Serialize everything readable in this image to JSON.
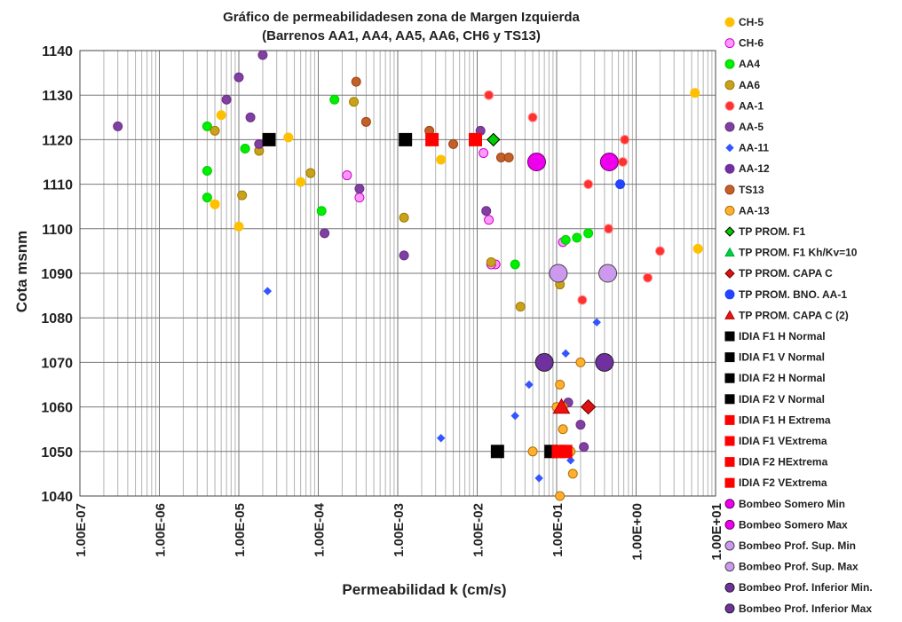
{
  "chart_data": {
    "type": "scatter",
    "title": [
      "Gráfico de permeabilidadesen zona de Margen Izquierda",
      "(Barrenos AA1, AA4,  AA5, AA6,  CH6 y TS13)"
    ],
    "xlabel": "Permeabilidad k (cm/s)",
    "ylabel": "Cota msnm",
    "x_scale": "log",
    "xlim": [
      1e-07,
      10
    ],
    "ylim": [
      1040,
      1140
    ],
    "x_ticks": [
      "1.00E-07",
      "1.00E-06",
      "1.00E-05",
      "1.00E-04",
      "1.00E-03",
      "1.00E-02",
      "1.00E-01",
      "1.00E+00",
      "1.00E+01"
    ],
    "y_ticks": [
      1040,
      1050,
      1060,
      1070,
      1080,
      1090,
      1100,
      1110,
      1120,
      1130,
      1140
    ],
    "grid": true,
    "legend_position": "right",
    "series": [
      {
        "name": "CH-5",
        "marker": "circle",
        "color": "#FFC000",
        "edge": "#FFC000",
        "size": 5,
        "x": [
          6e-06,
          5e-06,
          4.2e-05,
          1e-05,
          6e-05,
          0.0035,
          5e-06,
          6.0,
          5.5
        ],
        "y": [
          1125.5,
          1105.5,
          1120.5,
          1100.5,
          1110.5,
          1115.5,
          1105.5,
          1095.5,
          1130.5
        ]
      },
      {
        "name": "CH-6",
        "marker": "circle",
        "color": "#FF99FF",
        "edge": "#CC00CC",
        "size": 5,
        "x": [
          0.00023,
          0.00033,
          0.012,
          0.014,
          0.017,
          0.015,
          0.12
        ],
        "y": [
          1112,
          1107,
          1117,
          1102,
          1092,
          1092,
          1097
        ]
      },
      {
        "name": "AA4",
        "marker": "circle",
        "color": "#00EE00",
        "edge": "#00CC00",
        "size": 5,
        "x": [
          4e-06,
          4e-06,
          4e-06,
          1.2e-05,
          0.00011,
          0.00016,
          0.03,
          0.13,
          0.18,
          0.25
        ],
        "y": [
          1123,
          1113,
          1107,
          1118,
          1104,
          1129,
          1092,
          1097.5,
          1098,
          1099
        ]
      },
      {
        "name": "AA6",
        "marker": "circle",
        "color": "#C9A21B",
        "edge": "#A07C00",
        "size": 5,
        "x": [
          5e-06,
          8e-05,
          1.1e-05,
          1.8e-05,
          0.00028,
          0.0012,
          0.015,
          0.035,
          0.11
        ],
        "y": [
          1122,
          1112.5,
          1107.5,
          1117.5,
          1128.5,
          1102.5,
          1092.5,
          1082.5,
          1087.5
        ]
      },
      {
        "name": "AA-1",
        "marker": "circle",
        "color": "#FF3030",
        "edge": "#FF9999",
        "size": 5,
        "x": [
          0.014,
          0.05,
          0.25,
          0.68,
          0.72,
          0.45,
          2.0,
          1.4,
          0.21
        ],
        "y": [
          1130,
          1125,
          1110,
          1115,
          1120,
          1100,
          1095,
          1089,
          1084
        ]
      },
      {
        "name": "AA-5",
        "marker": "circle",
        "color": "#8040A0",
        "edge": "#6A2C8A",
        "size": 5,
        "x": [
          3e-07,
          7e-06,
          1e-05,
          1.4e-05,
          1.8e-05,
          2e-05,
          0.00012,
          0.00033,
          0.0012,
          0.011,
          0.013,
          0.14,
          0.2,
          0.22
        ],
        "y": [
          1123,
          1129,
          1134,
          1125,
          1119,
          1139,
          1099,
          1109,
          1094,
          1122,
          1104,
          1061,
          1056,
          1051
        ]
      },
      {
        "name": "AA-11",
        "marker": "diamond",
        "color": "#3355FF",
        "edge": "#3355FF",
        "size": 4,
        "x": [
          2.3e-05,
          0.0035,
          0.03,
          0.045,
          0.06,
          0.13,
          0.15,
          0.32
        ],
        "y": [
          1086,
          1053,
          1058,
          1065,
          1044,
          1072,
          1048,
          1079
        ]
      },
      {
        "name": "AA-12",
        "marker": "circle",
        "color": "#7030A0",
        "edge": "#7030A0",
        "size": 5,
        "x": [],
        "y": []
      },
      {
        "name": "TS13",
        "marker": "circle",
        "color": "#C0602A",
        "edge": "#A04010",
        "size": 5,
        "x": [
          0.0003,
          0.0004,
          0.0025,
          0.005,
          0.02,
          0.025
        ],
        "y": [
          1133,
          1124,
          1122,
          1119,
          1116,
          1116
        ]
      },
      {
        "name": "AA-13",
        "marker": "circle",
        "color": "#FFB030",
        "edge": "#B07000",
        "size": 5,
        "x": [
          0.05,
          0.11,
          0.1,
          0.11,
          0.12,
          0.16,
          0.2,
          0.15,
          0.12
        ],
        "y": [
          1050,
          1040,
          1060,
          1065,
          1055,
          1045,
          1070,
          1050,
          1060
        ]
      },
      {
        "name": "TP PROM. F1",
        "marker": "diamond",
        "color": "#00CC00",
        "edge": "#000000",
        "size": 7,
        "x": [
          0.016
        ],
        "y": [
          1120
        ]
      },
      {
        "name": "TP PROM. F1 Kh/Kv=10",
        "marker": "triangle",
        "color": "#00CC44",
        "edge": "#00AA33",
        "size": 7,
        "x": [],
        "y": []
      },
      {
        "name": "TP PROM. CAPA C",
        "marker": "diamond",
        "color": "#DD1111",
        "edge": "#660000",
        "size": 8,
        "x": [
          0.25
        ],
        "y": [
          1060
        ]
      },
      {
        "name": "TP PROM. BNO. AA-1",
        "marker": "circle",
        "color": "#2244FF",
        "edge": "#2244FF",
        "size": 5,
        "x": [
          0.63
        ],
        "y": [
          1110
        ]
      },
      {
        "name": "TP PROM. CAPA C (2)",
        "marker": "triangle",
        "color": "#EE1111",
        "edge": "#AA0000",
        "size": 9,
        "x": [
          0.115
        ],
        "y": [
          1060
        ]
      },
      {
        "name": "IDIA F1 H Normal",
        "marker": "square",
        "color": "#000000",
        "edge": "#000000",
        "size": 7,
        "x": [
          2.4e-05
        ],
        "y": [
          1120
        ]
      },
      {
        "name": "IDIA F1 V Normal",
        "marker": "square",
        "color": "#000000",
        "edge": "#000000",
        "size": 7,
        "x": [
          0.00125
        ],
        "y": [
          1120
        ]
      },
      {
        "name": "IDIA F2  H Normal",
        "marker": "square",
        "color": "#000000",
        "edge": "#000000",
        "size": 7,
        "x": [
          0.018
        ],
        "y": [
          1050
        ]
      },
      {
        "name": "IDIA F2 V Normal",
        "marker": "square",
        "color": "#000000",
        "edge": "#000000",
        "size": 7,
        "x": [
          0.085
        ],
        "y": [
          1050
        ]
      },
      {
        "name": "IDIA F1 H Extrema",
        "marker": "square",
        "color": "#FF0000",
        "edge": "#FF0000",
        "size": 7,
        "x": [
          0.0027
        ],
        "y": [
          1120
        ]
      },
      {
        "name": "IDIA F1 VExtrema",
        "marker": "square",
        "color": "#FF0000",
        "edge": "#FF0000",
        "size": 7,
        "x": [
          0.0095
        ],
        "y": [
          1120
        ]
      },
      {
        "name": "IDIA F2 HExtrema",
        "marker": "square",
        "color": "#FF0000",
        "edge": "#FF0000",
        "size": 7,
        "x": [
          0.105
        ],
        "y": [
          1050
        ]
      },
      {
        "name": "IDIA F2 VExtrema",
        "marker": "square",
        "color": "#FF0000",
        "edge": "#FF0000",
        "size": 7,
        "x": [
          0.13
        ],
        "y": [
          1050
        ]
      },
      {
        "name": "Bombeo Somero Min",
        "marker": "circle",
        "color": "#EE00EE",
        "edge": "#660066",
        "size": 10,
        "x": [
          0.056
        ],
        "y": [
          1115
        ]
      },
      {
        "name": "Bombeo Somero Max",
        "marker": "circle",
        "color": "#EE00EE",
        "edge": "#660066",
        "size": 10,
        "x": [
          0.46
        ],
        "y": [
          1115
        ]
      },
      {
        "name": "Bombeo Prof. Sup. Min",
        "marker": "circle",
        "color": "#CC99EE",
        "edge": "#444444",
        "size": 10,
        "x": [
          0.105
        ],
        "y": [
          1090
        ]
      },
      {
        "name": "Bombeo Prof. Sup. Max",
        "marker": "circle",
        "color": "#CC99EE",
        "edge": "#444444",
        "size": 10,
        "x": [
          0.44
        ],
        "y": [
          1090
        ]
      },
      {
        "name": "Bombeo Prof. Inferior Min.",
        "marker": "circle",
        "color": "#7030A0",
        "edge": "#222222",
        "size": 10,
        "x": [
          0.07
        ],
        "y": [
          1070
        ]
      },
      {
        "name": "Bombeo Prof. Inferior Max",
        "marker": "circle",
        "color": "#7030A0",
        "edge": "#222222",
        "size": 10,
        "x": [
          0.4
        ],
        "y": [
          1070
        ]
      }
    ]
  }
}
